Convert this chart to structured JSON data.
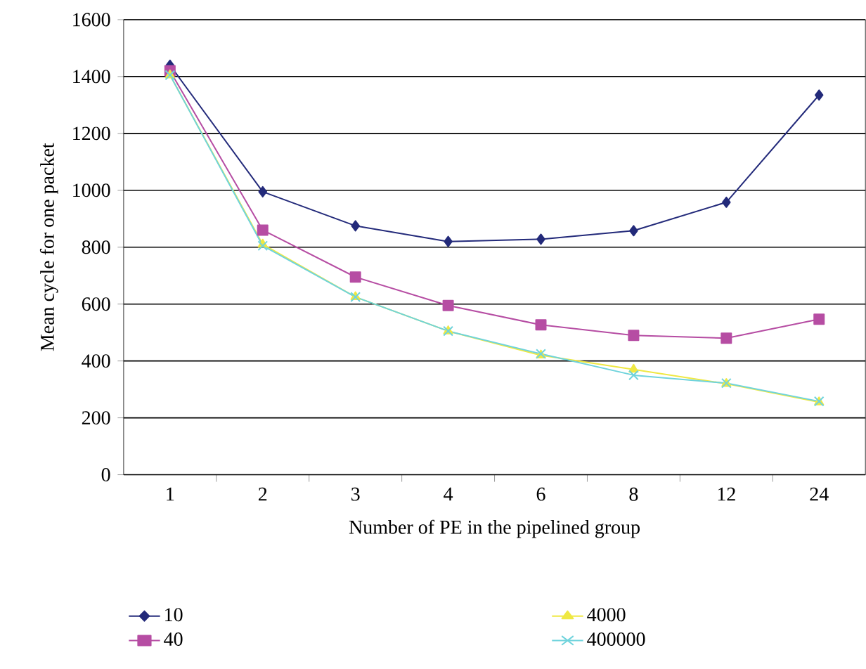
{
  "chart_data": {
    "type": "line",
    "xlabel": "Number of PE in the pipelined group",
    "ylabel": "Mean cycle for one packet",
    "categories": [
      "1",
      "2",
      "3",
      "4",
      "6",
      "8",
      "12",
      "24"
    ],
    "ylim": [
      0,
      1600
    ],
    "yticks": [
      0,
      200,
      400,
      600,
      800,
      1000,
      1200,
      1400,
      1600
    ],
    "grid": "y",
    "legend": "bottom",
    "series": [
      {
        "name": "10",
        "color": "#232a7a",
        "marker": "diamond",
        "values": [
          1440,
          995,
          875,
          820,
          828,
          858,
          958,
          1335
        ]
      },
      {
        "name": "40",
        "color": "#b64da3",
        "marker": "square",
        "values": [
          1420,
          860,
          695,
          595,
          527,
          490,
          480,
          547
        ]
      },
      {
        "name": "4000",
        "color": "#efe843",
        "marker": "triangle",
        "values": [
          1405,
          810,
          625,
          505,
          420,
          370,
          320,
          255
        ]
      },
      {
        "name": "400000",
        "color": "#6fd3dc",
        "marker": "cross",
        "values": [
          1405,
          805,
          625,
          505,
          425,
          350,
          322,
          258
        ]
      }
    ]
  }
}
